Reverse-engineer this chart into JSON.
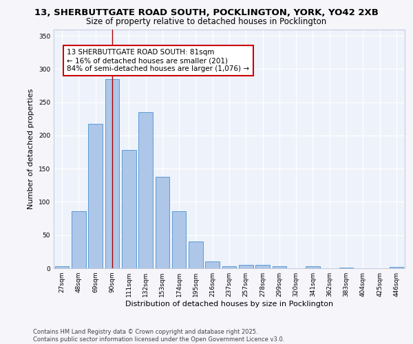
{
  "title_line1": "13, SHERBUTTGATE ROAD SOUTH, POCKLINGTON, YORK, YO42 2XB",
  "title_line2": "Size of property relative to detached houses in Pocklington",
  "xlabel": "Distribution of detached houses by size in Pocklington",
  "ylabel": "Number of detached properties",
  "categories": [
    "27sqm",
    "48sqm",
    "69sqm",
    "90sqm",
    "111sqm",
    "132sqm",
    "153sqm",
    "174sqm",
    "195sqm",
    "216sqm",
    "237sqm",
    "257sqm",
    "278sqm",
    "299sqm",
    "320sqm",
    "341sqm",
    "362sqm",
    "383sqm",
    "404sqm",
    "425sqm",
    "446sqm"
  ],
  "values": [
    3,
    86,
    218,
    285,
    178,
    235,
    138,
    86,
    40,
    10,
    3,
    5,
    5,
    3,
    0,
    3,
    0,
    1,
    0,
    0,
    2
  ],
  "bar_color": "#aec6e8",
  "bar_edge_color": "#5b9bd5",
  "bar_width": 0.85,
  "vline_x": 3.0,
  "vline_color": "#aa0000",
  "annotation_text": "13 SHERBUTTGATE ROAD SOUTH: 81sqm\n← 16% of detached houses are smaller (201)\n84% of semi-detached houses are larger (1,076) →",
  "annotation_box_color": "#ffffff",
  "annotation_box_edge_color": "#cc0000",
  "ylim": [
    0,
    360
  ],
  "yticks": [
    0,
    50,
    100,
    150,
    200,
    250,
    300,
    350
  ],
  "background_color": "#eef2fb",
  "fig_background_color": "#f5f5fa",
  "footer_text": "Contains HM Land Registry data © Crown copyright and database right 2025.\nContains public sector information licensed under the Open Government Licence v3.0.",
  "grid_color": "#ffffff",
  "title_fontsize": 9.5,
  "subtitle_fontsize": 8.5,
  "axis_label_fontsize": 8,
  "tick_fontsize": 6.5,
  "annotation_fontsize": 7.5,
  "footer_fontsize": 6.0
}
